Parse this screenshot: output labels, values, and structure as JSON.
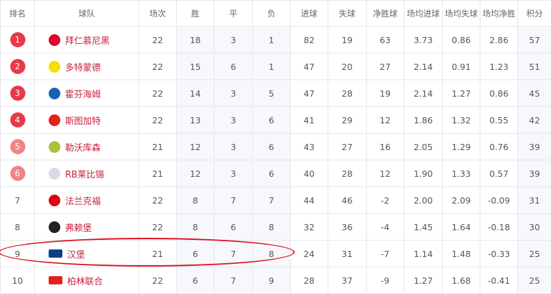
{
  "headers": [
    "排名",
    "球队",
    "场次",
    "胜",
    "平",
    "负",
    "进球",
    "失球",
    "净胜球",
    "场均进球",
    "场均失球",
    "场均净胜",
    "积分"
  ],
  "colors": {
    "badge_top": "#e8394a",
    "badge_mid": "#ef8585",
    "team_text": "#c8223c",
    "highlight_ellipse": "#e01020"
  },
  "rows": [
    {
      "rank": "1",
      "team": "拜仁慕尼黑",
      "logo": "bayern-logo",
      "logo_color": "#dc052d",
      "played": "22",
      "w": "18",
      "d": "3",
      "l": "1",
      "gf": "82",
      "ga": "19",
      "gd": "63",
      "avg_gf": "3.73",
      "avg_ga": "0.86",
      "avg_gd": "2.86",
      "pts": "57",
      "badge": "top"
    },
    {
      "rank": "2",
      "team": "多特蒙德",
      "logo": "dortmund-logo",
      "logo_color": "#f5e000",
      "played": "22",
      "w": "15",
      "d": "6",
      "l": "1",
      "gf": "47",
      "ga": "20",
      "gd": "27",
      "avg_gf": "2.14",
      "avg_ga": "0.91",
      "avg_gd": "1.23",
      "pts": "51",
      "badge": "top"
    },
    {
      "rank": "3",
      "team": "霍芬海姆",
      "logo": "hoffenheim-logo",
      "logo_color": "#1961b5",
      "played": "22",
      "w": "14",
      "d": "3",
      "l": "5",
      "gf": "47",
      "ga": "28",
      "gd": "19",
      "avg_gf": "2.14",
      "avg_ga": "1.27",
      "avg_gd": "0.86",
      "pts": "45",
      "badge": "top"
    },
    {
      "rank": "4",
      "team": "斯图加特",
      "logo": "stuttgart-logo",
      "logo_color": "#e32219",
      "played": "22",
      "w": "13",
      "d": "3",
      "l": "6",
      "gf": "41",
      "ga": "29",
      "gd": "12",
      "avg_gf": "1.86",
      "avg_ga": "1.32",
      "avg_gd": "0.55",
      "pts": "42",
      "badge": "top"
    },
    {
      "rank": "5",
      "team": "勒沃库森",
      "logo": "leverkusen-logo",
      "logo_color": "#a8c23a",
      "played": "21",
      "w": "12",
      "d": "3",
      "l": "6",
      "gf": "43",
      "ga": "27",
      "gd": "16",
      "avg_gf": "2.05",
      "avg_ga": "1.29",
      "avg_gd": "0.76",
      "pts": "39",
      "badge": "mid"
    },
    {
      "rank": "6",
      "team": "RB莱比锡",
      "logo": "leipzig-logo",
      "logo_color": "#d9d9e6",
      "played": "21",
      "w": "12",
      "d": "3",
      "l": "6",
      "gf": "40",
      "ga": "28",
      "gd": "12",
      "avg_gf": "1.90",
      "avg_ga": "1.33",
      "avg_gd": "0.57",
      "pts": "39",
      "badge": "mid"
    },
    {
      "rank": "7",
      "team": "法兰克福",
      "logo": "frankfurt-logo",
      "logo_color": "#e1000f",
      "played": "22",
      "w": "8",
      "d": "7",
      "l": "7",
      "gf": "44",
      "ga": "46",
      "gd": "-2",
      "avg_gf": "2.00",
      "avg_ga": "2.09",
      "avg_gd": "-0.09",
      "pts": "31",
      "badge": ""
    },
    {
      "rank": "8",
      "team": "弗赖堡",
      "logo": "freiburg-logo",
      "logo_color": "#222222",
      "played": "22",
      "w": "8",
      "d": "6",
      "l": "8",
      "gf": "32",
      "ga": "36",
      "gd": "-4",
      "avg_gf": "1.45",
      "avg_ga": "1.64",
      "avg_gd": "-0.18",
      "pts": "30",
      "badge": ""
    },
    {
      "rank": "9",
      "team": "汉堡",
      "logo": "hamburg-logo",
      "logo_color": "#0a3f86",
      "played": "21",
      "w": "6",
      "d": "7",
      "l": "8",
      "gf": "24",
      "ga": "31",
      "gd": "-7",
      "avg_gf": "1.14",
      "avg_ga": "1.48",
      "avg_gd": "-0.33",
      "pts": "25",
      "badge": ""
    },
    {
      "rank": "10",
      "team": "柏林联合",
      "logo": "union-berlin-logo",
      "logo_color": "#e2231a",
      "played": "22",
      "w": "6",
      "d": "7",
      "l": "9",
      "gf": "28",
      "ga": "37",
      "gd": "-9",
      "avg_gf": "1.27",
      "avg_ga": "1.68",
      "avg_gd": "-0.41",
      "pts": "25",
      "badge": ""
    }
  ]
}
